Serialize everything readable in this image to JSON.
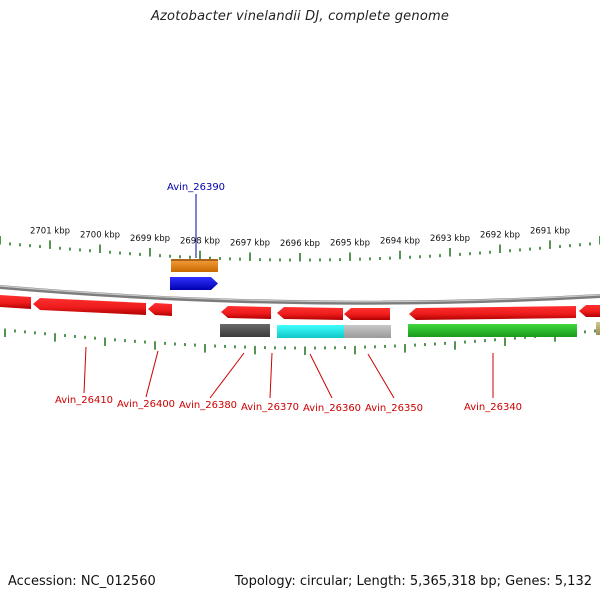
{
  "title": "Azotobacter vinelandii DJ, complete genome",
  "footer": {
    "accession": "Accession: NC_012560",
    "summary": "Topology: circular; Length: 5,365,318 bp; Genes: 5,132"
  },
  "ruler": {
    "unit": "kbp",
    "ticks": [
      {
        "label": "2701 kbp",
        "value": 2701
      },
      {
        "label": "2700 kbp",
        "value": 2700
      },
      {
        "label": "2699 kbp",
        "value": 2699
      },
      {
        "label": "2698 kbp",
        "value": 2698
      },
      {
        "label": "2697 kbp",
        "value": 2697
      },
      {
        "label": "2696 kbp",
        "value": 2696
      },
      {
        "label": "2695 kbp",
        "value": 2695
      },
      {
        "label": "2694 kbp",
        "value": 2694
      },
      {
        "label": "2693 kbp",
        "value": 2693
      },
      {
        "label": "2692 kbp",
        "value": 2692
      },
      {
        "label": "2691 kbp",
        "value": 2691
      }
    ]
  },
  "colors": {
    "red_gene": "#ee1c1c",
    "orange_gene": "#ef8a14",
    "blue_gene": "#1111ee",
    "dark_gray_gene": "#555555",
    "cyan_gene": "#18f0f0",
    "light_gray_gene": "#b4b4b4",
    "green_gene": "#2cc42c",
    "olive_gene": "#b8b070",
    "backbone": "#8a8a8a",
    "tick_green": "#2a7a2a",
    "label_red": "#cc0000",
    "label_blue": "#0000aa"
  },
  "genes": [
    {
      "name": "Avin_26410",
      "strand": "reverse",
      "color": "red_gene"
    },
    {
      "name": "Avin_26400",
      "strand": "reverse",
      "color": "red_gene"
    },
    {
      "name": "Avin_26390",
      "strand": "forward",
      "color": "blue_gene"
    },
    {
      "name": "Avin_26380",
      "strand": "reverse",
      "color": "red_gene"
    },
    {
      "name": "Avin_26370",
      "strand": "reverse",
      "color": "red_gene"
    },
    {
      "name": "Avin_26360",
      "strand": "reverse",
      "color": "red_gene"
    },
    {
      "name": "Avin_26350",
      "strand": "reverse",
      "color": "red_gene"
    },
    {
      "name": "Avin_26340",
      "strand": "reverse",
      "color": "red_gene"
    }
  ]
}
